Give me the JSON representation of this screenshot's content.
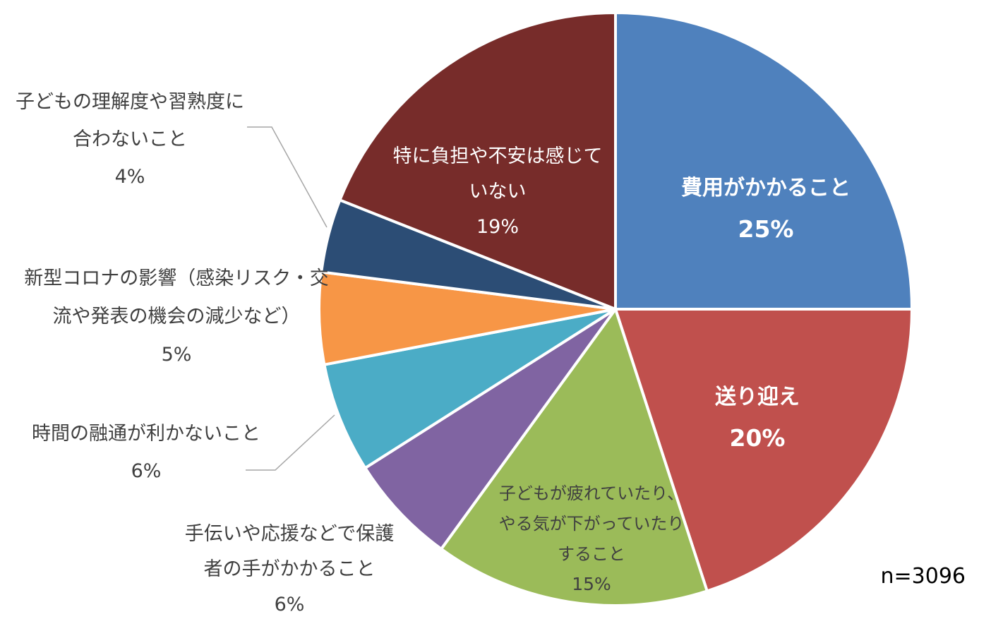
{
  "chart_data": {
    "type": "pie",
    "sample_note": "n=3096",
    "slices": [
      {
        "label": [
          "費用がかかること"
        ],
        "value_label": "25%",
        "value": 25,
        "color": "#4F81BD",
        "text_color": "#ffffff",
        "bold": true
      },
      {
        "label": [
          "送り迎え"
        ],
        "value_label": "20%",
        "value": 20,
        "color": "#C0504D",
        "text_color": "#ffffff",
        "bold": true
      },
      {
        "label": [
          "子どもが疲れていたり、",
          "やる気が下がっていたり",
          "すること"
        ],
        "value_label": "15%",
        "value": 15,
        "color": "#9BBB59",
        "text_color": "#404040",
        "bold": false
      },
      {
        "label": [
          "手伝いや応援などで保護",
          "者の手がかかること"
        ],
        "value_label": "6%",
        "value": 6,
        "color": "#8064A2",
        "text_color": "#404040",
        "bold": false
      },
      {
        "label": [
          "時間の融通が利かないこと"
        ],
        "value_label": "6%",
        "value": 6,
        "color": "#4BACC6",
        "text_color": "#404040",
        "bold": false
      },
      {
        "label": [
          "新型コロナの影響（感染リスク・交",
          "流や発表の機会の減少など）"
        ],
        "value_label": "5%",
        "value": 5,
        "color": "#F79646",
        "text_color": "#404040",
        "bold": false
      },
      {
        "label": [
          "子どもの理解度や習熟度に",
          "合わないこと"
        ],
        "value_label": "4%",
        "value": 4,
        "color": "#2C4D75",
        "text_color": "#404040",
        "bold": false
      },
      {
        "label": [
          "特に負担や不安は感じて",
          "いない"
        ],
        "value_label": "19%",
        "value": 19,
        "color": "#772C2A",
        "text_color": "#ffffff",
        "bold": false
      }
    ]
  }
}
